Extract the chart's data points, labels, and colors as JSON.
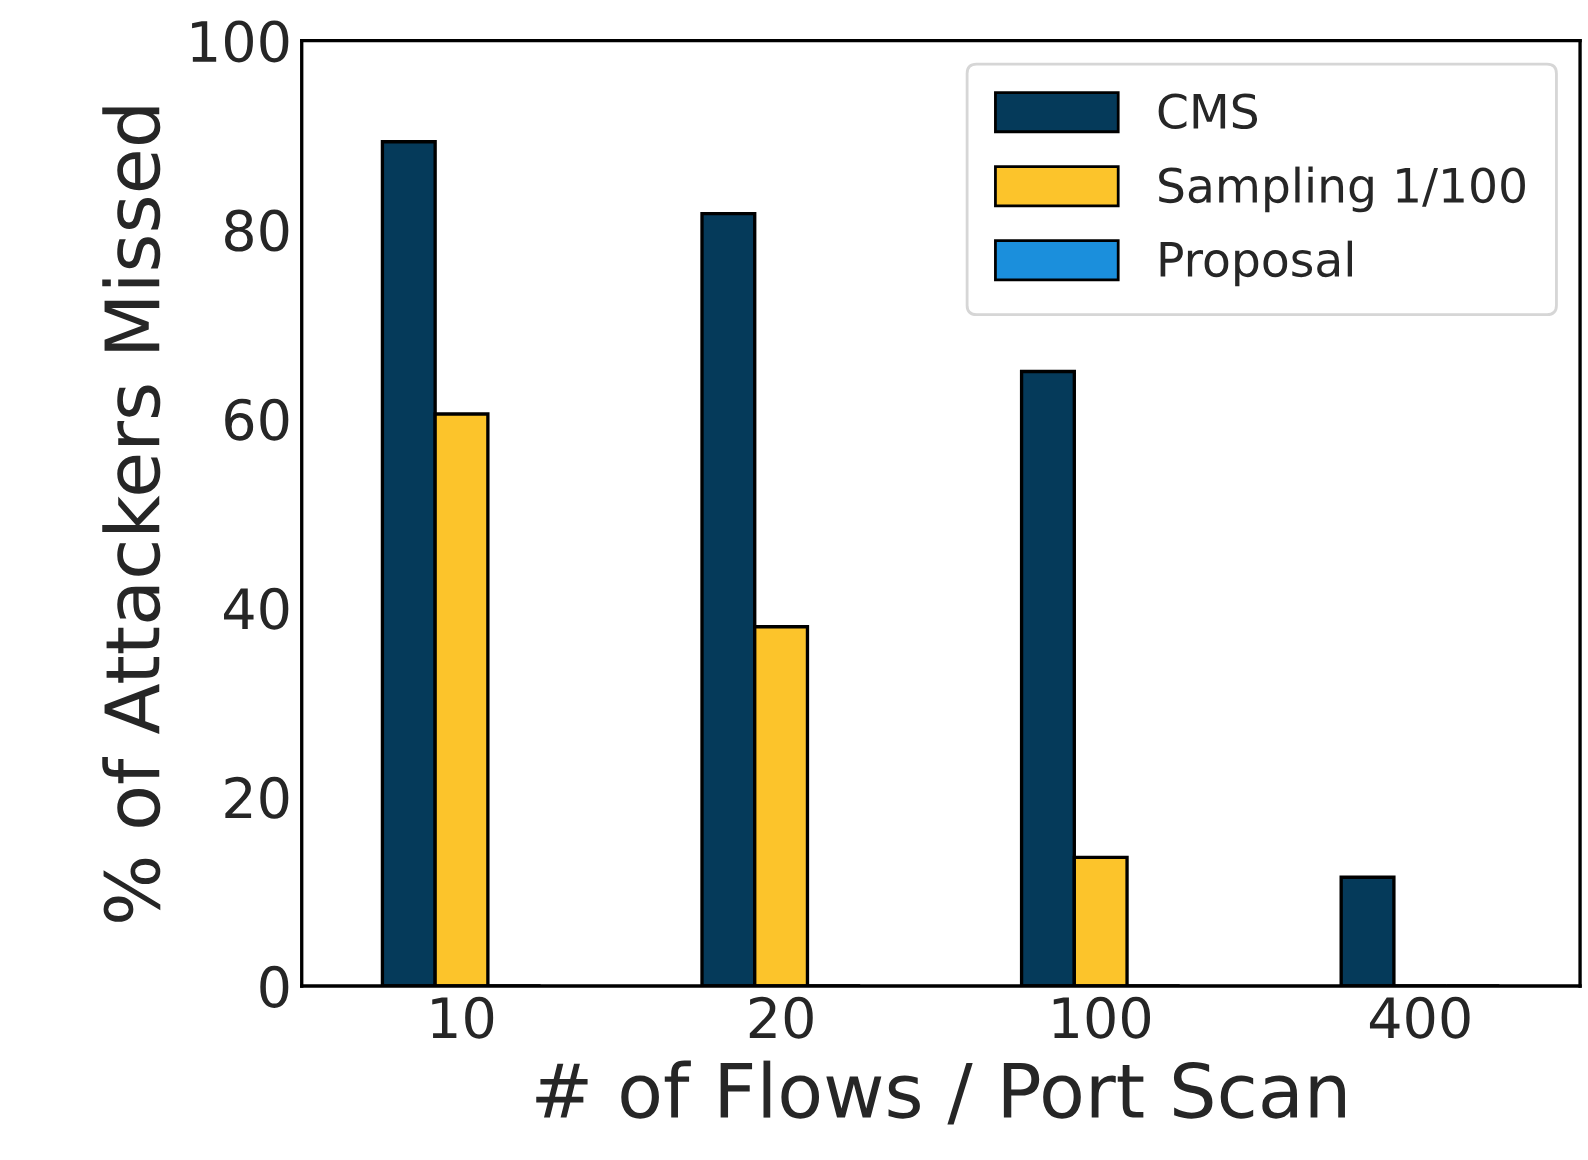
{
  "chart_data": {
    "type": "bar",
    "xlabel": "# of Flows / Port Scan",
    "ylabel": "% of Attackers Missed",
    "categories": [
      "10",
      "20",
      "100",
      "400"
    ],
    "series": [
      {
        "name": "CMS",
        "color": "#053a5a",
        "values": [
          89.3,
          81.7,
          65.0,
          11.5
        ]
      },
      {
        "name": "Sampling 1/100",
        "color": "#fcc42b",
        "values": [
          60.5,
          38.0,
          13.6,
          0
        ]
      },
      {
        "name": "Proposal",
        "color": "#1b8fdc",
        "values": [
          0,
          0,
          0,
          0
        ]
      }
    ],
    "ylim": [
      0,
      100
    ],
    "yticks": [
      0,
      20,
      40,
      60,
      80,
      100
    ],
    "grid": false,
    "legend": "top right"
  }
}
